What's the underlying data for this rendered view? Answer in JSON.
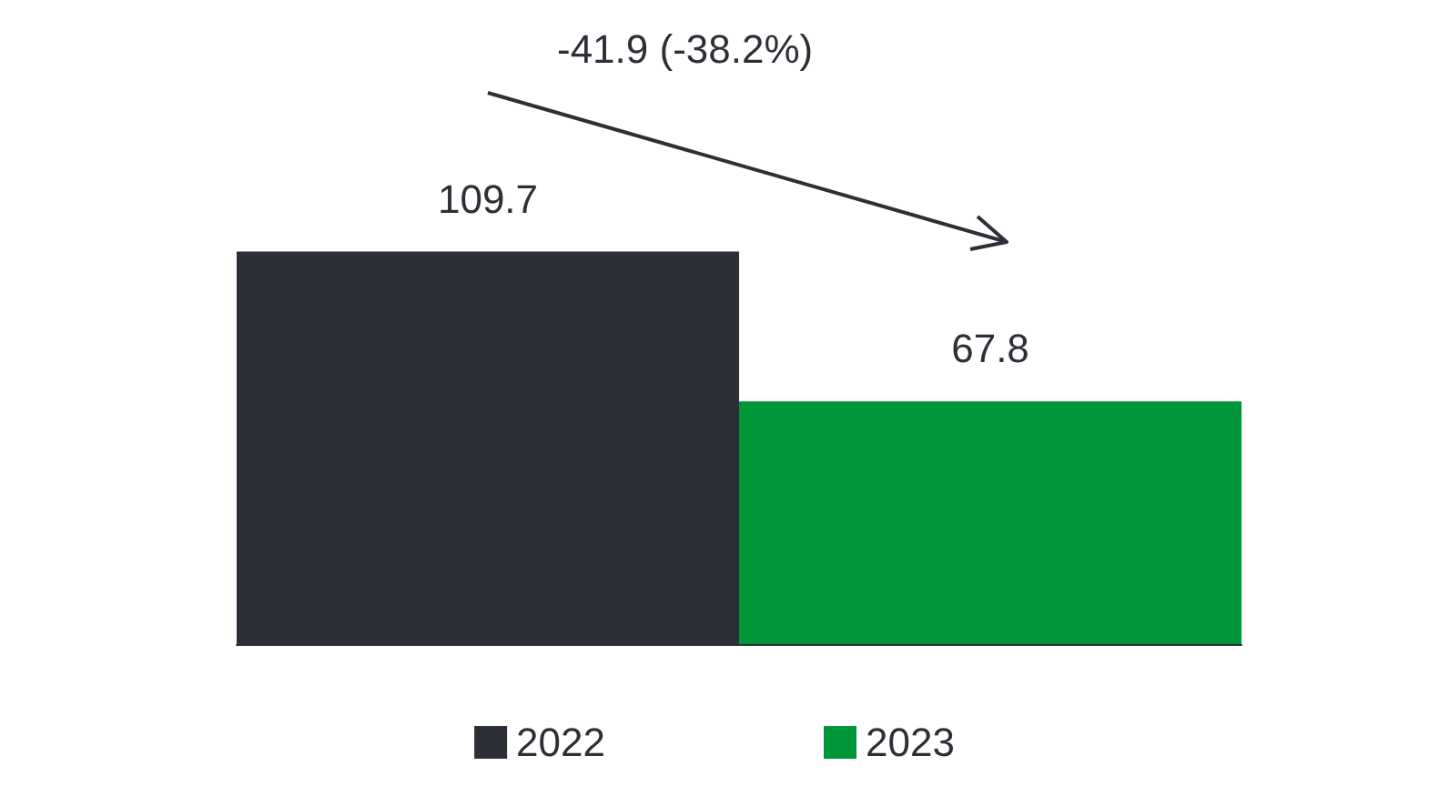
{
  "chart_data": {
    "type": "bar",
    "categories": [
      null
    ],
    "series": [
      {
        "name": "2022",
        "color": "#2c2f36",
        "values": [
          109.7
        ]
      },
      {
        "name": "2023",
        "color": "#00963a",
        "values": [
          67.8
        ]
      }
    ],
    "data_labels": true,
    "legend": "bottom",
    "annotations": [
      "-41.9 (-38.2%)"
    ]
  }
}
